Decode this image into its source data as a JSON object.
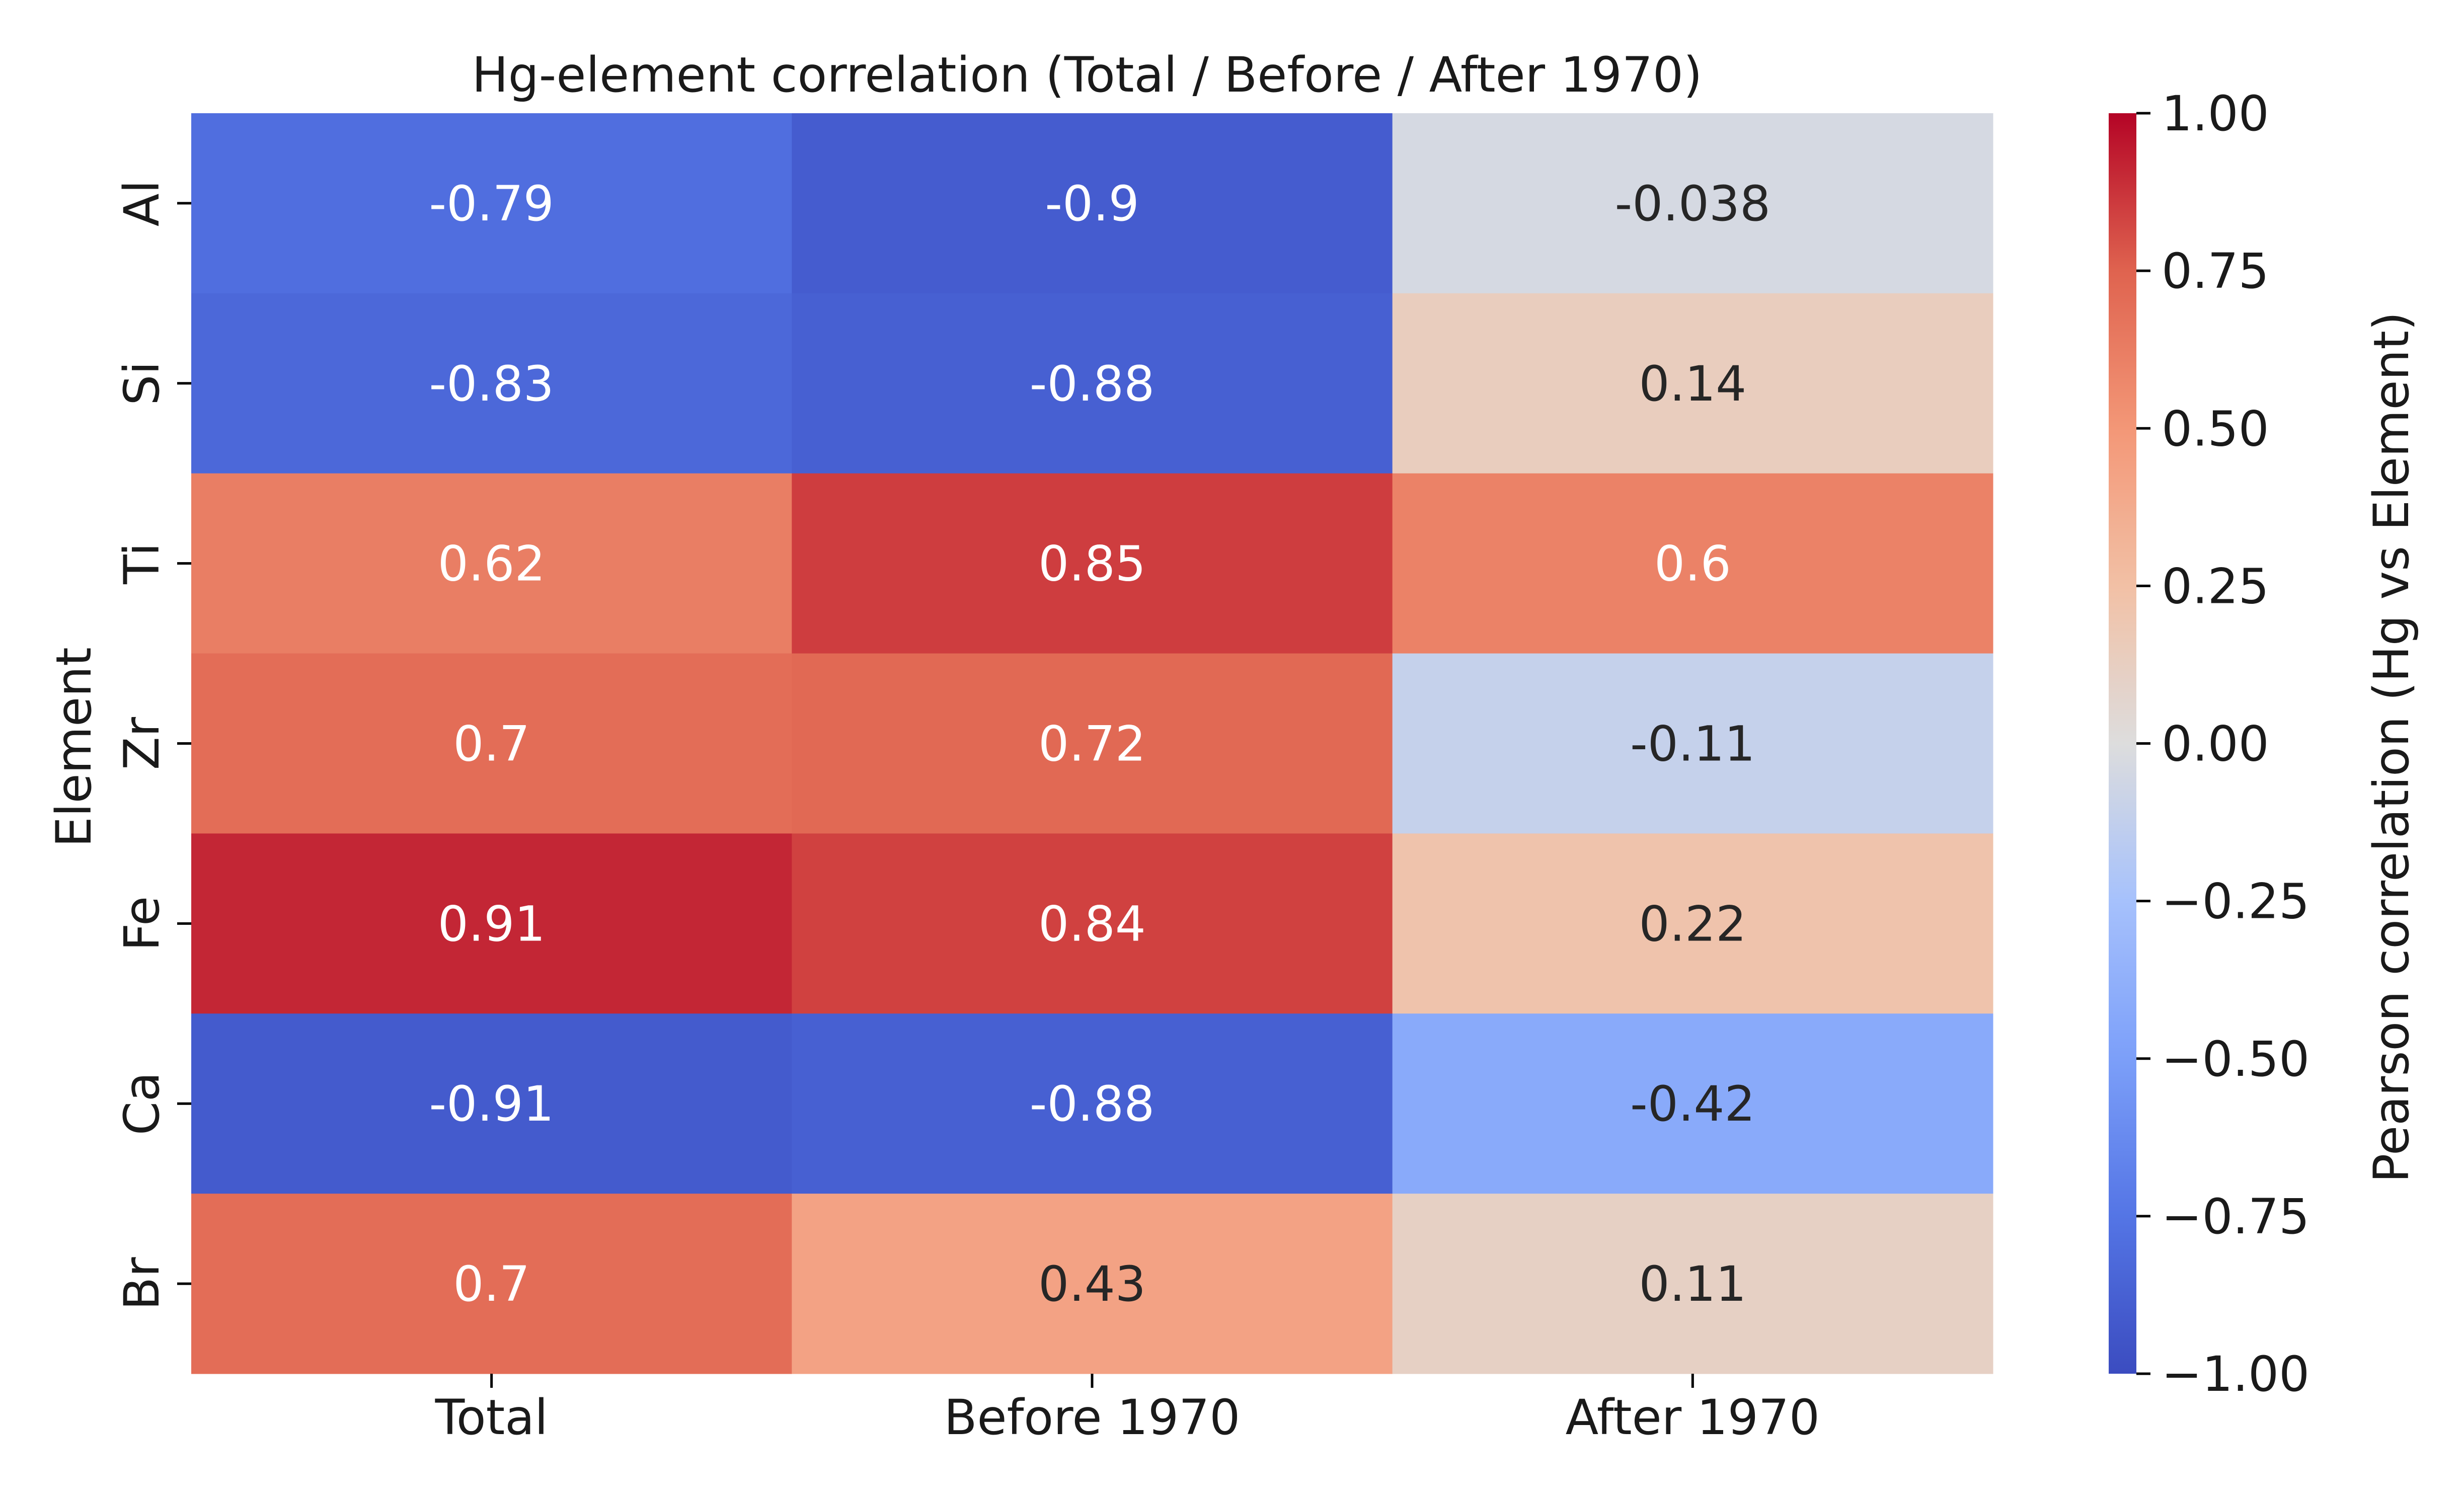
{
  "chart_data": {
    "type": "heatmap",
    "title": "Hg-element correlation (Total / Before / After 1970)",
    "xlabel": "",
    "ylabel": "Element",
    "columns": [
      "Total",
      "Before 1970",
      "After 1970"
    ],
    "rows": [
      "Al",
      "Si",
      "Ti",
      "Zr",
      "Fe",
      "Ca",
      "Br"
    ],
    "values": [
      [
        -0.79,
        -0.9,
        -0.038
      ],
      [
        -0.83,
        -0.88,
        0.14
      ],
      [
        0.62,
        0.85,
        0.6
      ],
      [
        0.7,
        0.72,
        -0.11
      ],
      [
        0.91,
        0.84,
        0.22
      ],
      [
        -0.91,
        -0.88,
        -0.42
      ],
      [
        0.7,
        0.43,
        0.11
      ]
    ],
    "value_labels": [
      [
        "-0.79",
        "-0.9",
        "-0.038"
      ],
      [
        "-0.83",
        "-0.88",
        "0.14"
      ],
      [
        "0.62",
        "0.85",
        "0.6"
      ],
      [
        "0.7",
        "0.72",
        "-0.11"
      ],
      [
        "0.91",
        "0.84",
        "0.22"
      ],
      [
        "-0.91",
        "-0.88",
        "-0.42"
      ],
      [
        "0.7",
        "0.43",
        "0.11"
      ]
    ],
    "colormap": "coolwarm",
    "vmin": -1.0,
    "vmax": 1.0,
    "colorbar": {
      "label": "Pearson correlation (Hg vs Element)",
      "ticks": [
        1.0,
        0.75,
        0.5,
        0.25,
        0.0,
        -0.25,
        -0.5,
        -0.75,
        -1.0
      ],
      "tick_labels": [
        "1.00",
        "0.75",
        "0.50",
        "0.25",
        "0.00",
        "−0.25",
        "−0.50",
        "−0.75",
        "−1.00"
      ],
      "placement": "right"
    },
    "grid": false
  }
}
